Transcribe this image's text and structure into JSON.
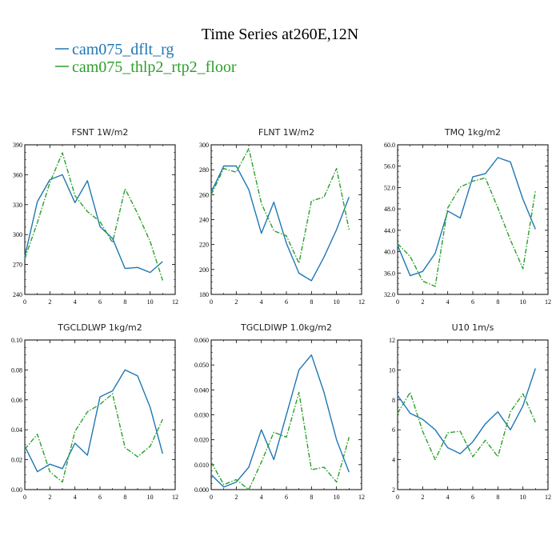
{
  "figure": {
    "title": "Time Series at260E,12N",
    "legend": [
      {
        "label": "cam075_dflt_rg",
        "color": "#1f77b4",
        "dash": "solid"
      },
      {
        "label": "cam075_thlp2_rtp2_floor",
        "color": "#2ca02c",
        "dash": "dashdot"
      }
    ]
  },
  "chart_data": [
    {
      "type": "line",
      "title": "FSNT  1W/m2",
      "x": [
        0,
        1,
        2,
        3,
        4,
        5,
        6,
        7,
        8,
        9,
        10,
        11
      ],
      "xlim": [
        0,
        12
      ],
      "xticks": [
        0,
        2,
        4,
        6,
        8,
        10,
        12
      ],
      "ylim": [
        240,
        390
      ],
      "yticks": [
        240,
        270,
        300,
        330,
        360,
        390
      ],
      "ydec": 0,
      "series": [
        {
          "name": "cam075_dflt_rg",
          "values": [
            278,
            333,
            355,
            360,
            332,
            354,
            308,
            296,
            266,
            267,
            262,
            273
          ]
        },
        {
          "name": "cam075_thlp2_rtp2_floor",
          "values": [
            276,
            312,
            352,
            382,
            339,
            323,
            313,
            292,
            346,
            321,
            293,
            254
          ]
        }
      ]
    },
    {
      "type": "line",
      "title": "FLNT  1W/m2",
      "x": [
        0,
        1,
        2,
        3,
        4,
        5,
        6,
        7,
        8,
        9,
        10,
        11
      ],
      "xlim": [
        0,
        12
      ],
      "xticks": [
        0,
        2,
        4,
        6,
        8,
        10,
        12
      ],
      "ylim": [
        180,
        300
      ],
      "yticks": [
        180,
        200,
        220,
        240,
        260,
        280,
        300
      ],
      "ydec": 0,
      "series": [
        {
          "name": "cam075_dflt_rg",
          "values": [
            262,
            283,
            283,
            264,
            229,
            254,
            221,
            197,
            191,
            210,
            232,
            258
          ]
        },
        {
          "name": "cam075_thlp2_rtp2_floor",
          "values": [
            260,
            281,
            278,
            297,
            253,
            231,
            227,
            205,
            255,
            258,
            281,
            232
          ]
        }
      ]
    },
    {
      "type": "line",
      "title": "TMQ  1kg/m2",
      "x": [
        0,
        1,
        2,
        3,
        4,
        5,
        6,
        7,
        8,
        9,
        10,
        11
      ],
      "xlim": [
        0,
        12
      ],
      "xticks": [
        0,
        2,
        4,
        6,
        8,
        10,
        12
      ],
      "ylim": [
        32,
        60
      ],
      "yticks": [
        32,
        36,
        40,
        44,
        48,
        52,
        56,
        60
      ],
      "ydec": 1,
      "series": [
        {
          "name": "cam075_dflt_rg",
          "values": [
            41.2,
            35.5,
            36.3,
            39.7,
            47.6,
            46.3,
            54.0,
            54.6,
            57.6,
            56.8,
            49.8,
            44.2
          ]
        },
        {
          "name": "cam075_thlp2_rtp2_floor",
          "values": [
            41.5,
            39.1,
            34.5,
            33.5,
            48.2,
            52.1,
            53.2,
            53.8,
            48.2,
            42.2,
            36.8,
            51.4
          ]
        }
      ]
    },
    {
      "type": "line",
      "title": "TGCLDLWP  1kg/m2",
      "x": [
        0,
        1,
        2,
        3,
        4,
        5,
        6,
        7,
        8,
        9,
        10,
        11
      ],
      "xlim": [
        0,
        12
      ],
      "xticks": [
        0,
        2,
        4,
        6,
        8,
        10,
        12
      ],
      "ylim": [
        0,
        0.1
      ],
      "yticks": [
        0,
        0.02,
        0.04,
        0.06,
        0.08,
        0.1
      ],
      "ydec": 2,
      "series": [
        {
          "name": "cam075_dflt_rg",
          "values": [
            0.029,
            0.012,
            0.017,
            0.014,
            0.031,
            0.023,
            0.062,
            0.066,
            0.08,
            0.076,
            0.055,
            0.024
          ]
        },
        {
          "name": "cam075_thlp2_rtp2_floor",
          "values": [
            0.027,
            0.037,
            0.012,
            0.005,
            0.039,
            0.052,
            0.057,
            0.064,
            0.028,
            0.022,
            0.029,
            0.047
          ]
        }
      ]
    },
    {
      "type": "line",
      "title": "TGCLDIWP  1.0kg/m2",
      "x": [
        0,
        1,
        2,
        3,
        4,
        5,
        6,
        7,
        8,
        9,
        10,
        11
      ],
      "xlim": [
        0,
        12
      ],
      "xticks": [
        0,
        2,
        4,
        6,
        8,
        10,
        12
      ],
      "ylim": [
        0,
        0.06
      ],
      "yticks": [
        0,
        0.01,
        0.02,
        0.03,
        0.04,
        0.05,
        0.06
      ],
      "ydec": 3,
      "series": [
        {
          "name": "cam075_dflt_rg",
          "values": [
            0.006,
            0.001,
            0.003,
            0.009,
            0.024,
            0.012,
            0.03,
            0.048,
            0.054,
            0.039,
            0.02,
            0.007
          ]
        },
        {
          "name": "cam075_thlp2_rtp2_floor",
          "values": [
            0.011,
            0.002,
            0.004,
            0.0,
            0.011,
            0.023,
            0.021,
            0.039,
            0.008,
            0.009,
            0.003,
            0.021
          ]
        }
      ]
    },
    {
      "type": "line",
      "title": "U10  1m/s",
      "x": [
        0,
        1,
        2,
        3,
        4,
        5,
        6,
        7,
        8,
        9,
        10,
        11
      ],
      "xlim": [
        0,
        12
      ],
      "xticks": [
        0,
        2,
        4,
        6,
        8,
        10,
        12
      ],
      "ylim": [
        2,
        12
      ],
      "yticks": [
        2,
        4,
        6,
        8,
        10,
        12
      ],
      "ydec": 0,
      "series": [
        {
          "name": "cam075_dflt_rg",
          "values": [
            8.3,
            7.1,
            6.7,
            6.0,
            4.8,
            4.4,
            5.2,
            6.4,
            7.2,
            6.0,
            7.6,
            10.1
          ]
        },
        {
          "name": "cam075_thlp2_rtp2_floor",
          "values": [
            7.1,
            8.5,
            5.9,
            4.0,
            5.8,
            5.9,
            4.2,
            5.3,
            4.2,
            7.2,
            8.4,
            6.5
          ]
        }
      ]
    }
  ]
}
